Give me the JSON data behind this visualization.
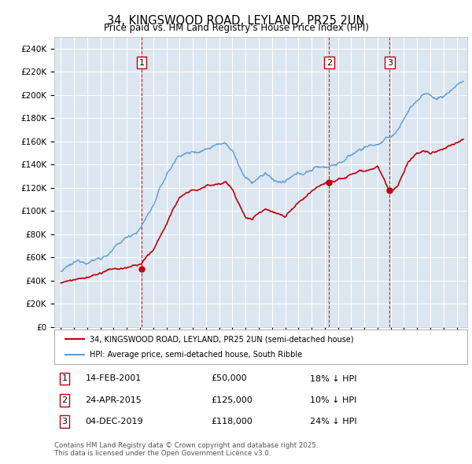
{
  "title": "34, KINGSWOOD ROAD, LEYLAND, PR25 2UN",
  "subtitle": "Price paid vs. HM Land Registry's House Price Index (HPI)",
  "background_color": "#dce6f0",
  "plot_background": "#dce6f0",
  "legend_label_red": "34, KINGSWOOD ROAD, LEYLAND, PR25 2UN (semi-detached house)",
  "legend_label_blue": "HPI: Average price, semi-detached house, South Ribble",
  "transactions": [
    {
      "date": 2001.12,
      "price": 50000,
      "label": "1"
    },
    {
      "date": 2015.32,
      "price": 125000,
      "label": "2"
    },
    {
      "date": 2019.92,
      "price": 118000,
      "label": "3"
    }
  ],
  "transaction_dates_str": [
    "14-FEB-2001",
    "24-APR-2015",
    "04-DEC-2019"
  ],
  "transaction_prices_str": [
    "£50,000",
    "£125,000",
    "£118,000"
  ],
  "transaction_hpi_str": [
    "18% ↓ HPI",
    "10% ↓ HPI",
    "24% ↓ HPI"
  ],
  "footer": "Contains HM Land Registry data © Crown copyright and database right 2025.\nThis data is licensed under the Open Government Licence v3.0.",
  "ylim": [
    0,
    250000
  ],
  "yticks": [
    0,
    20000,
    40000,
    60000,
    80000,
    100000,
    120000,
    140000,
    160000,
    180000,
    200000,
    220000,
    240000
  ],
  "xlim_start": 1994.5,
  "xlim_end": 2025.8
}
